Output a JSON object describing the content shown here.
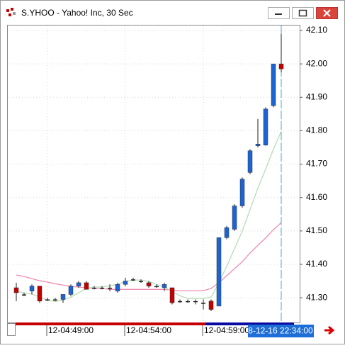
{
  "chart_data": {
    "type": "candlestick",
    "title": "S.YHOO - Yahoo! Inc, 30 Sec",
    "cursor_label": "8-12-16 22:34:00",
    "categories": [
      null,
      null,
      null,
      null,
      "12-04:49:00",
      null,
      null,
      null,
      null,
      null,
      null,
      null,
      null,
      null,
      "12-04:54:00",
      null,
      null,
      null,
      null,
      null,
      null,
      null,
      null,
      null,
      "12-04:59:00",
      null,
      null,
      null,
      null,
      null,
      null,
      null,
      null,
      null,
      null
    ],
    "open": [
      41.33,
      41.31,
      41.32,
      41.335,
      41.295,
      41.295,
      41.295,
      41.31,
      41.335,
      41.345,
      41.33,
      41.33,
      41.33,
      41.32,
      41.34,
      41.355,
      41.35,
      41.345,
      41.335,
      41.33,
      41.33,
      41.29,
      41.29,
      41.29,
      41.285,
      41.29,
      41.275,
      41.48,
      41.505,
      41.575,
      41.675,
      41.755,
      41.757,
      41.875,
      42.0
    ],
    "high": [
      41.345,
      41.315,
      41.34,
      41.335,
      41.3,
      41.3,
      41.31,
      41.34,
      41.35,
      41.35,
      41.335,
      41.335,
      41.34,
      41.345,
      41.36,
      41.36,
      41.355,
      41.35,
      41.34,
      41.345,
      41.33,
      41.295,
      41.295,
      41.295,
      41.295,
      41.295,
      41.48,
      41.515,
      41.58,
      41.66,
      41.745,
      41.835,
      41.87,
      42.0,
      42.09
    ],
    "low": [
      41.29,
      41.305,
      41.31,
      41.285,
      41.29,
      41.29,
      41.285,
      41.305,
      41.33,
      41.325,
      41.325,
      41.325,
      41.32,
      41.315,
      41.335,
      41.35,
      41.345,
      41.33,
      41.33,
      41.32,
      41.28,
      41.285,
      41.285,
      41.28,
      41.265,
      41.26,
      41.275,
      41.475,
      41.5,
      41.57,
      41.67,
      41.75,
      41.755,
      41.87,
      41.975
    ],
    "close": [
      41.315,
      41.31,
      41.335,
      41.29,
      41.295,
      41.295,
      41.31,
      41.335,
      41.345,
      41.325,
      41.33,
      41.33,
      41.33,
      41.34,
      41.35,
      41.355,
      41.35,
      41.335,
      41.335,
      41.34,
      41.285,
      41.29,
      41.29,
      41.29,
      41.285,
      41.265,
      41.48,
      41.51,
      41.575,
      41.655,
      41.74,
      41.76,
      41.865,
      42.0,
      41.985
    ],
    "up_color": "#1c64d4",
    "down_color": "#c40000",
    "overlays": [
      {
        "color": "#f08cb4",
        "values": [
          41.368,
          41.364,
          41.357,
          41.351,
          41.347,
          41.342,
          41.338,
          41.334,
          41.332,
          41.33,
          41.328,
          41.328,
          41.325,
          41.325,
          41.325,
          41.325,
          41.325,
          41.325,
          41.325,
          41.325,
          41.323,
          41.321,
          41.321,
          41.321,
          41.321,
          41.328,
          41.345,
          41.366,
          41.387,
          41.408,
          41.434,
          41.457,
          41.479,
          41.504,
          41.525
        ]
      },
      {
        "color": "#b9dcb9",
        "values": [
          41.319,
          41.315,
          41.311,
          41.302,
          41.293,
          41.289,
          41.293,
          41.302,
          41.315,
          41.328,
          41.332,
          41.332,
          41.336,
          41.34,
          41.349,
          41.353,
          41.353,
          41.349,
          41.34,
          41.332,
          41.319,
          41.306,
          41.298,
          41.298,
          41.298,
          41.302,
          41.345,
          41.394,
          41.447,
          41.5,
          41.564,
          41.628,
          41.685,
          41.745,
          41.798
        ]
      }
    ],
    "ylim": [
      41.226,
      42.117
    ],
    "yticks": [
      {
        "value": 42.1,
        "label": "42.10"
      },
      {
        "value": 42.0,
        "label": "42.00"
      },
      {
        "value": 41.9,
        "label": "41.90"
      },
      {
        "value": 41.8,
        "label": "41.80"
      },
      {
        "value": 41.7,
        "label": "41.70"
      },
      {
        "value": 41.6,
        "label": "41.60"
      },
      {
        "value": 41.5,
        "label": "41.50"
      },
      {
        "value": 41.4,
        "label": "41.40"
      },
      {
        "value": 41.3,
        "label": "41.30"
      }
    ],
    "grid": true
  }
}
